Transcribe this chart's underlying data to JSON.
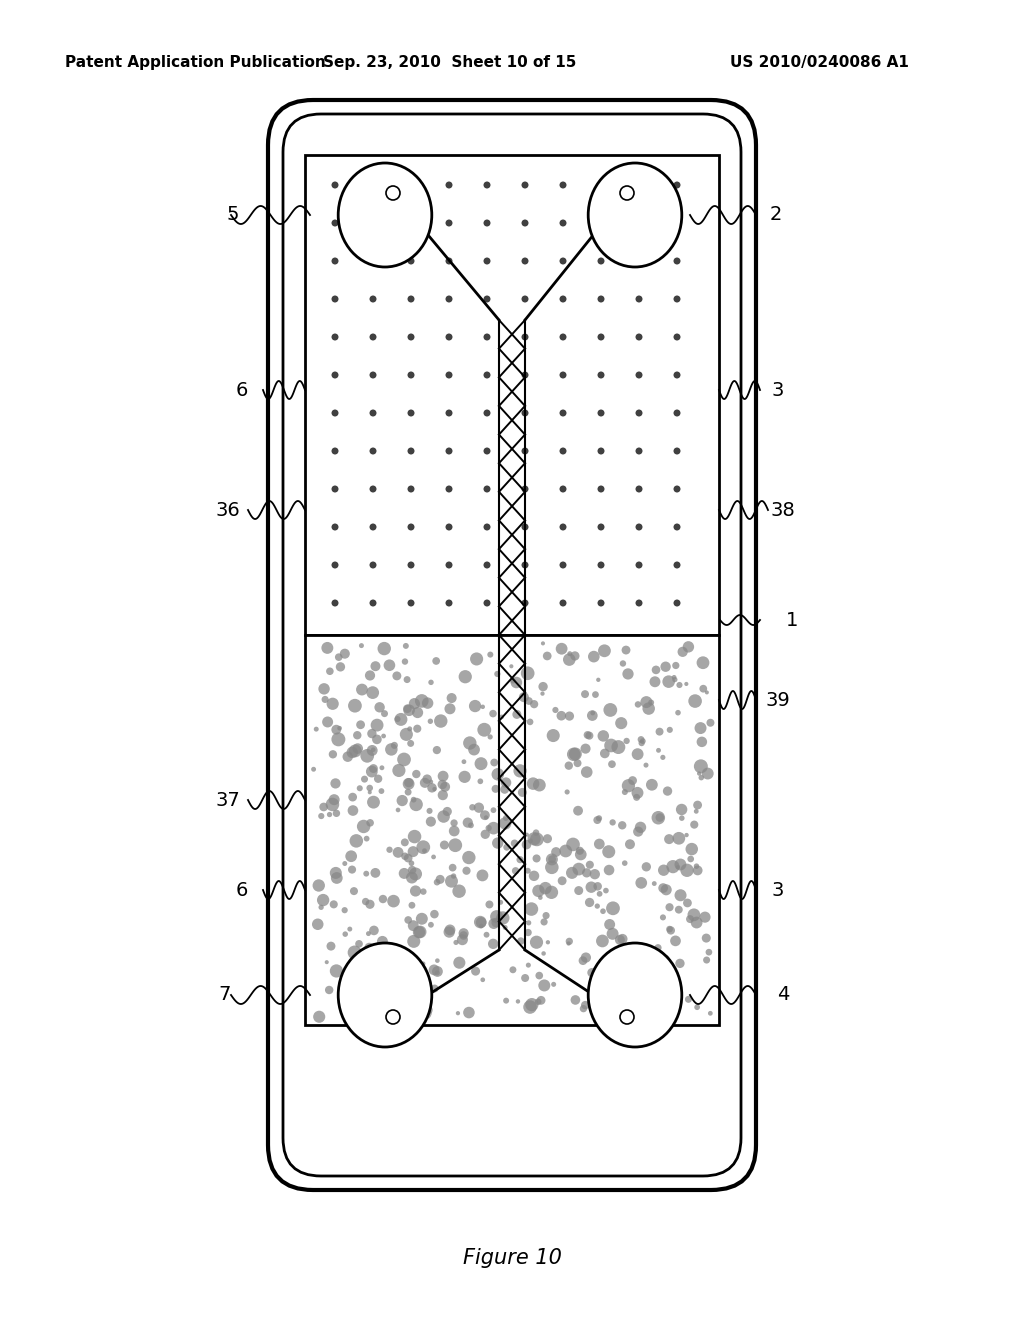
{
  "title": "Figure 10",
  "header_left": "Patent Application Publication",
  "header_mid": "Sep. 23, 2010  Sheet 10 of 15",
  "header_right": "US 2010/0240086 A1",
  "bg_color": "#ffffff",
  "line_color": "#000000"
}
